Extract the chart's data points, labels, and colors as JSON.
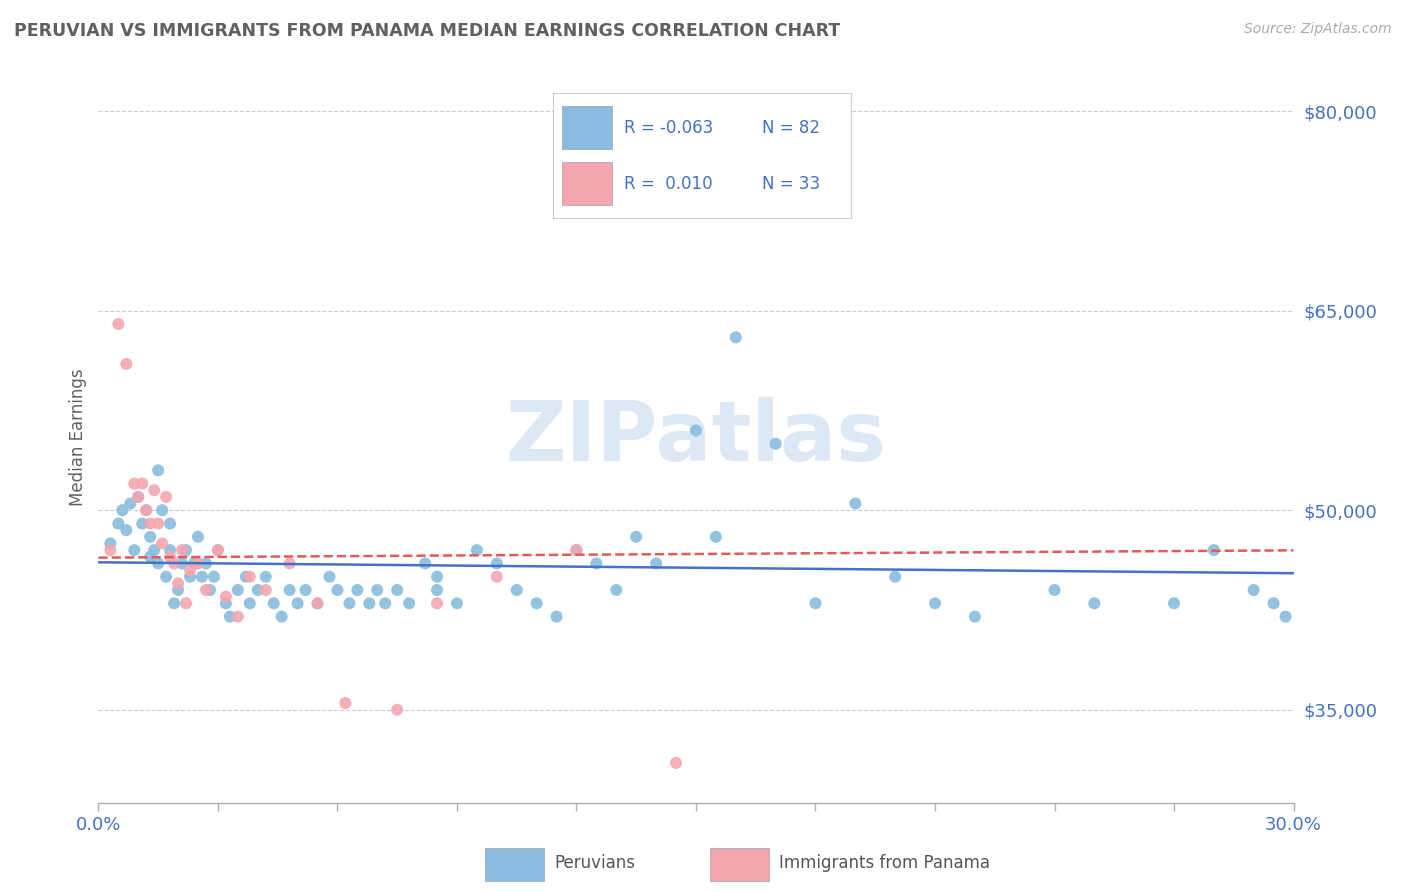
{
  "title": "PERUVIAN VS IMMIGRANTS FROM PANAMA MEDIAN EARNINGS CORRELATION CHART",
  "source_text": "Source: ZipAtlas.com",
  "ylabel": "Median Earnings",
  "xlim": [
    0.0,
    0.3
  ],
  "ylim": [
    28000,
    83000
  ],
  "yticks": [
    35000,
    50000,
    65000,
    80000
  ],
  "ytick_labels": [
    "$35,000",
    "$50,000",
    "$65,000",
    "$80,000"
  ],
  "xticks": [
    0.0,
    0.03,
    0.06,
    0.09,
    0.12,
    0.15,
    0.18,
    0.21,
    0.24,
    0.27,
    0.3
  ],
  "xtick_labels": [
    "0.0%",
    "",
    "",
    "",
    "",
    "",
    "",
    "",
    "",
    "",
    "30.0%"
  ],
  "blue_R": -0.063,
  "blue_N": 82,
  "pink_R": 0.01,
  "pink_N": 33,
  "blue_scatter_color": "#89bcde",
  "pink_scatter_color": "#f4a6b0",
  "blue_line_color": "#4472C4",
  "pink_line_color": "#E05C5C",
  "axis_color": "#b0b0b0",
  "grid_color": "#cccccc",
  "title_color": "#606060",
  "tick_label_color_x_ends": "#4472C4",
  "tick_label_color_y": "#4472C4",
  "watermark_text": "ZIPatlas",
  "watermark_color": "#dce9f5",
  "legend_label_blue": "Peruvians",
  "legend_label_pink": "Immigrants from Panama",
  "blue_scatter_x": [
    0.003,
    0.005,
    0.006,
    0.007,
    0.008,
    0.009,
    0.01,
    0.011,
    0.012,
    0.013,
    0.013,
    0.014,
    0.015,
    0.015,
    0.016,
    0.017,
    0.018,
    0.018,
    0.019,
    0.02,
    0.021,
    0.022,
    0.023,
    0.024,
    0.025,
    0.026,
    0.027,
    0.028,
    0.029,
    0.03,
    0.032,
    0.033,
    0.035,
    0.037,
    0.038,
    0.04,
    0.042,
    0.044,
    0.046,
    0.048,
    0.05,
    0.052,
    0.055,
    0.058,
    0.06,
    0.063,
    0.065,
    0.068,
    0.07,
    0.072,
    0.075,
    0.078,
    0.082,
    0.085,
    0.09,
    0.095,
    0.1,
    0.105,
    0.11,
    0.115,
    0.12,
    0.125,
    0.13,
    0.135,
    0.14,
    0.15,
    0.16,
    0.17,
    0.18,
    0.19,
    0.2,
    0.21,
    0.22,
    0.24,
    0.25,
    0.27,
    0.28,
    0.29,
    0.295,
    0.298,
    0.155,
    0.085
  ],
  "blue_scatter_y": [
    47500,
    49000,
    50000,
    48500,
    50500,
    47000,
    51000,
    49000,
    50000,
    46500,
    48000,
    47000,
    53000,
    46000,
    50000,
    45000,
    47000,
    49000,
    43000,
    44000,
    46000,
    47000,
    45000,
    46000,
    48000,
    45000,
    46000,
    44000,
    45000,
    47000,
    43000,
    42000,
    44000,
    45000,
    43000,
    44000,
    45000,
    43000,
    42000,
    44000,
    43000,
    44000,
    43000,
    45000,
    44000,
    43000,
    44000,
    43000,
    44000,
    43000,
    44000,
    43000,
    46000,
    45000,
    43000,
    47000,
    46000,
    44000,
    43000,
    42000,
    47000,
    46000,
    44000,
    48000,
    46000,
    56000,
    63000,
    55000,
    43000,
    50500,
    45000,
    43000,
    42000,
    44000,
    43000,
    43000,
    47000,
    44000,
    43000,
    42000,
    48000,
    44000
  ],
  "pink_scatter_x": [
    0.003,
    0.005,
    0.007,
    0.009,
    0.01,
    0.011,
    0.012,
    0.013,
    0.014,
    0.015,
    0.016,
    0.017,
    0.018,
    0.019,
    0.02,
    0.021,
    0.022,
    0.023,
    0.025,
    0.027,
    0.03,
    0.032,
    0.035,
    0.038,
    0.042,
    0.048,
    0.055,
    0.062,
    0.075,
    0.085,
    0.1,
    0.12,
    0.145
  ],
  "pink_scatter_y": [
    47000,
    64000,
    61000,
    52000,
    51000,
    52000,
    50000,
    49000,
    51500,
    49000,
    47500,
    51000,
    46500,
    46000,
    44500,
    47000,
    43000,
    45500,
    46000,
    44000,
    47000,
    43500,
    42000,
    45000,
    44000,
    46000,
    43000,
    35500,
    35000,
    43000,
    45000,
    47000,
    31000
  ]
}
